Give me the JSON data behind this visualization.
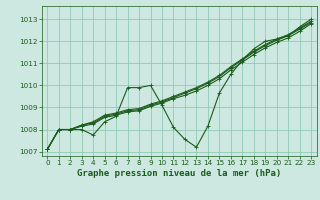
{
  "title": "Graphe pression niveau de la mer (hPa)",
  "bg_color": "#cce8e0",
  "grid_color": "#88c4b0",
  "line_color": "#1a5c1a",
  "xlim": [
    -0.5,
    23.5
  ],
  "ylim": [
    1006.8,
    1013.6
  ],
  "yticks": [
    1007,
    1008,
    1009,
    1010,
    1011,
    1012,
    1013
  ],
  "xticks": [
    0,
    1,
    2,
    3,
    4,
    5,
    6,
    7,
    8,
    9,
    10,
    11,
    12,
    13,
    14,
    15,
    16,
    17,
    18,
    19,
    20,
    21,
    22,
    23
  ],
  "series_main": [
    1007.1,
    1008.0,
    1008.0,
    1008.0,
    1007.75,
    1008.35,
    1008.6,
    1009.9,
    1009.9,
    1010.0,
    1009.1,
    1008.1,
    1007.55,
    1007.2,
    1008.15,
    1009.65,
    1010.5,
    1011.15,
    1011.65,
    1012.0,
    1012.1,
    1012.25,
    1012.65,
    1013.0
  ],
  "series_smooth1": [
    1007.1,
    1008.0,
    1008.0,
    1008.15,
    1008.25,
    1008.55,
    1008.65,
    1008.8,
    1008.85,
    1009.05,
    1009.2,
    1009.4,
    1009.55,
    1009.75,
    1010.0,
    1010.3,
    1010.7,
    1011.05,
    1011.4,
    1011.7,
    1011.95,
    1012.15,
    1012.45,
    1012.8
  ],
  "series_smooth2": [
    1007.1,
    1008.0,
    1008.0,
    1008.2,
    1008.3,
    1008.6,
    1008.7,
    1008.85,
    1008.9,
    1009.1,
    1009.25,
    1009.45,
    1009.65,
    1009.85,
    1010.1,
    1010.4,
    1010.8,
    1011.15,
    1011.5,
    1011.8,
    1012.05,
    1012.25,
    1012.55,
    1012.85
  ],
  "series_smooth3": [
    1007.1,
    1008.0,
    1008.0,
    1008.2,
    1008.35,
    1008.65,
    1008.75,
    1008.9,
    1008.95,
    1009.15,
    1009.3,
    1009.5,
    1009.7,
    1009.9,
    1010.15,
    1010.45,
    1010.85,
    1011.2,
    1011.55,
    1011.85,
    1012.1,
    1012.3,
    1012.6,
    1012.9
  ],
  "marker": "+",
  "marker_size": 3,
  "line_width": 0.8,
  "title_fontsize": 6.5,
  "tick_fontsize": 5.2
}
